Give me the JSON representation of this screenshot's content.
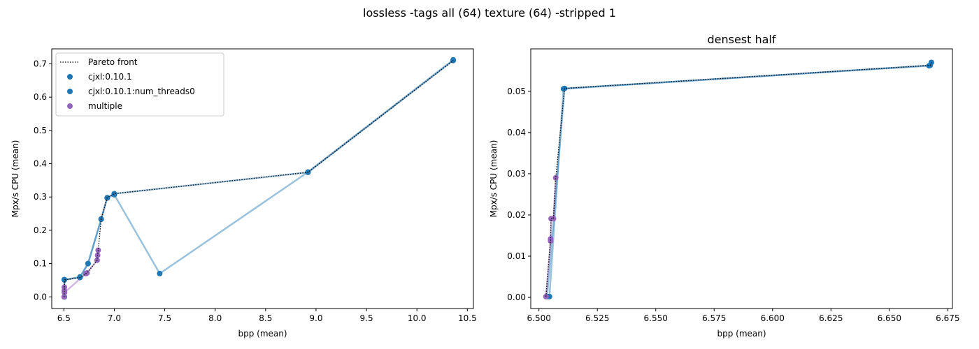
{
  "figure": {
    "suptitle": "lossless -tags all (64) texture (64) -stripped 1"
  },
  "colors": {
    "blue": "#1f77b4",
    "purple": "#9467bd",
    "pareto": "#000000"
  },
  "chart_data": [
    {
      "type": "scatter",
      "title": "",
      "xlabel": "bpp (mean)",
      "ylabel": "Mpx/s CPU (mean)",
      "xlim": [
        6.38,
        10.56
      ],
      "ylim": [
        -0.035,
        0.745
      ],
      "xticks": [
        6.5,
        7.0,
        7.5,
        8.0,
        8.5,
        9.0,
        9.5,
        10.0,
        10.5
      ],
      "xtick_labels": [
        "6.5",
        "7.0",
        "7.5",
        "8.0",
        "8.5",
        "9.0",
        "9.5",
        "10.0",
        "10.5"
      ],
      "yticks": [
        0.0,
        0.1,
        0.2,
        0.3,
        0.4,
        0.5,
        0.6,
        0.7
      ],
      "ytick_labels": [
        "0.0",
        "0.1",
        "0.2",
        "0.3",
        "0.4",
        "0.5",
        "0.6",
        "0.7"
      ],
      "legend": {
        "position": "top-left",
        "entries": [
          {
            "label": "Pareto front",
            "kind": "line"
          },
          {
            "label": "cjxl:0.10.1",
            "kind": "point",
            "color": "#1f77b4"
          },
          {
            "label": "cjxl:0.10.1:num_threads0",
            "kind": "point",
            "color": "#1f77b4"
          },
          {
            "label": "multiple",
            "kind": "point",
            "color": "#9467bd"
          }
        ]
      },
      "series": [
        {
          "label": "cjxl:0.10.1",
          "color": "#1f77b4",
          "x": [
            6.505,
            6.505,
            6.66,
            6.74,
            6.87,
            6.93,
            7.0,
            8.92,
            10.36
          ],
          "y": [
            0.0,
            0.052,
            0.058,
            0.1,
            0.234,
            0.298,
            0.31,
            0.374,
            0.71
          ]
        },
        {
          "label": "cjxl:0.10.1:num_threads0",
          "color": "#1f77b4",
          "x": [
            6.505,
            6.505,
            6.66,
            6.74,
            6.87,
            6.93,
            7.0,
            7.45,
            8.92,
            10.36
          ],
          "y": [
            0.0,
            0.051,
            0.06,
            0.1,
            0.233,
            0.297,
            0.307,
            0.07,
            0.375,
            0.712
          ]
        },
        {
          "label": "multiple",
          "color": "#9467bd",
          "x": [
            6.503,
            6.505,
            6.505,
            6.505,
            6.507,
            6.72,
            6.73,
            6.83,
            6.835,
            6.84
          ],
          "y": [
            0.0,
            0.014,
            0.019,
            0.029,
            0.013,
            0.07,
            0.072,
            0.11,
            0.125,
            0.14
          ]
        }
      ],
      "pareto_front": {
        "x": [
          6.503,
          6.505,
          6.505,
          6.507,
          6.505,
          6.511,
          6.66,
          6.72,
          6.73,
          6.83,
          6.835,
          6.84,
          6.87,
          6.93,
          7.0,
          8.92,
          10.36
        ],
        "y": [
          0.0,
          0.014,
          0.019,
          0.029,
          0.029,
          0.051,
          0.058,
          0.07,
          0.072,
          0.11,
          0.125,
          0.14,
          0.234,
          0.298,
          0.31,
          0.374,
          0.71
        ]
      }
    },
    {
      "type": "scatter",
      "title": "densest half",
      "xlabel": "bpp (mean)",
      "ylabel": "Mpx/s CPU (mean)",
      "xlim": [
        6.4965,
        6.677
      ],
      "ylim": [
        -0.0027,
        0.0603
      ],
      "xticks": [
        6.5,
        6.525,
        6.55,
        6.575,
        6.6,
        6.625,
        6.65,
        6.675
      ],
      "xtick_labels": [
        "6.500",
        "6.525",
        "6.550",
        "6.575",
        "6.600",
        "6.625",
        "6.650",
        "6.675"
      ],
      "yticks": [
        0.0,
        0.01,
        0.02,
        0.03,
        0.04,
        0.05
      ],
      "ytick_labels": [
        "0.00",
        "0.01",
        "0.02",
        "0.03",
        "0.04",
        "0.05"
      ],
      "series": [
        {
          "label": "cjxl:0.10.1",
          "color": "#1f77b4",
          "x": [
            6.5035,
            6.511,
            6.667
          ],
          "y": [
            0.0002,
            0.0507,
            0.0562
          ]
        },
        {
          "label": "cjxl:0.10.1:num_threads0",
          "color": "#1f77b4",
          "x": [
            6.5045,
            6.5105,
            6.6675,
            6.668
          ],
          "y": [
            0.0002,
            0.0506,
            0.0563,
            0.057
          ]
        },
        {
          "label": "multiple",
          "color": "#9467bd",
          "x": [
            6.503,
            6.505,
            6.505,
            6.5052,
            6.5062,
            6.5072
          ],
          "y": [
            0.0002,
            0.0137,
            0.0142,
            0.0191,
            0.0191,
            0.029
          ]
        }
      ],
      "pareto_front": {
        "x": [
          6.503,
          6.505,
          6.5052,
          6.5062,
          6.5072,
          6.5072,
          6.511,
          6.6675,
          6.668
        ],
        "y": [
          0.0002,
          0.0142,
          0.0191,
          0.0191,
          0.029,
          0.029,
          0.0507,
          0.0563,
          0.057
        ]
      }
    }
  ]
}
